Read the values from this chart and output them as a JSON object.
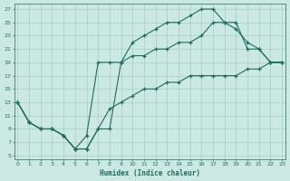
{
  "xlabel": "Humidex (Indice chaleur)",
  "bg_color": "#cce8e2",
  "grid_color": "#a8cec6",
  "line_color": "#1a6e60",
  "xlim": [
    -0.3,
    23.3
  ],
  "ylim": [
    4.5,
    27.8
  ],
  "xticks": [
    0,
    1,
    2,
    3,
    4,
    5,
    6,
    7,
    8,
    9,
    10,
    11,
    12,
    13,
    14,
    15,
    16,
    17,
    18,
    19,
    20,
    21,
    22,
    23
  ],
  "yticks": [
    5,
    7,
    9,
    11,
    13,
    15,
    17,
    19,
    21,
    23,
    25,
    27
  ],
  "line1_x": [
    0,
    1,
    2,
    3,
    4,
    5,
    6,
    7,
    8,
    9,
    10,
    11,
    12,
    13,
    14,
    15,
    16,
    17,
    18,
    19,
    20,
    21,
    22,
    23
  ],
  "line1_y": [
    13,
    10,
    9,
    9,
    8,
    6,
    6,
    9,
    9,
    19,
    22,
    23,
    24,
    25,
    25,
    26,
    27,
    27,
    25,
    24,
    22,
    21,
    19,
    19
  ],
  "line2_x": [
    0,
    1,
    2,
    3,
    4,
    5,
    6,
    7,
    8,
    9,
    10,
    11,
    12,
    13,
    14,
    15,
    16,
    17,
    18,
    19,
    20,
    21,
    22,
    23
  ],
  "line2_y": [
    13,
    10,
    9,
    9,
    8,
    6,
    8,
    19,
    19,
    19,
    20,
    20,
    21,
    21,
    22,
    22,
    23,
    25,
    25,
    25,
    21,
    21,
    19,
    19
  ],
  "line3_x": [
    0,
    1,
    2,
    3,
    4,
    5,
    6,
    7,
    8,
    9,
    10,
    11,
    12,
    13,
    14,
    15,
    16,
    17,
    18,
    19,
    20,
    21,
    22,
    23
  ],
  "line3_y": [
    13,
    10,
    9,
    9,
    8,
    6,
    6,
    9,
    12,
    13,
    14,
    15,
    15,
    16,
    16,
    17,
    17,
    17,
    17,
    17,
    18,
    18,
    19,
    19
  ]
}
